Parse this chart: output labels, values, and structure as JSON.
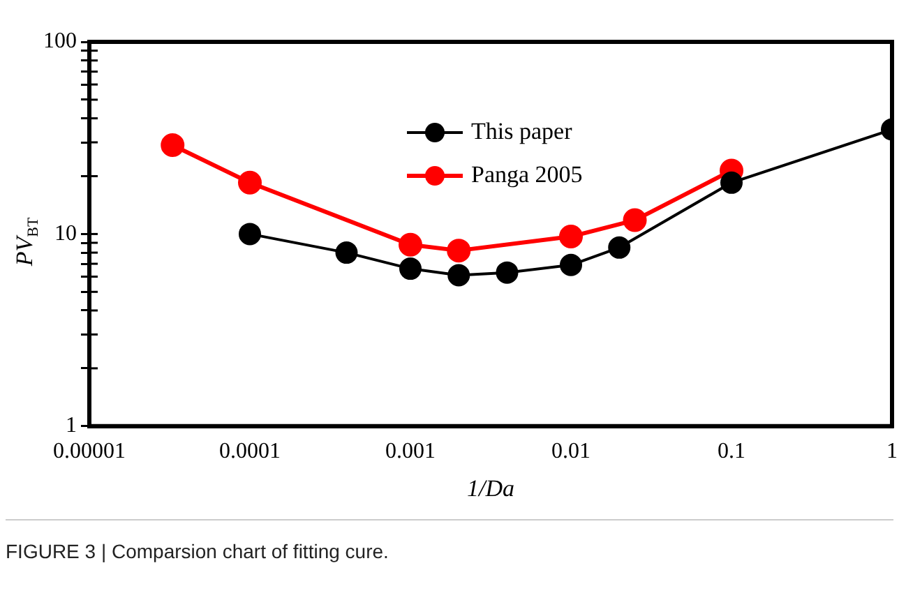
{
  "chart_data": {
    "type": "line",
    "xlabel": "1/Da",
    "ylabel": "PV$_{BT}$",
    "log": "xy",
    "xlim": [
      1e-05,
      1
    ],
    "ylim": [
      1,
      100
    ],
    "xticks": [
      {
        "value": 1e-05,
        "label": "0.00001"
      },
      {
        "value": 0.0001,
        "label": "0.0001"
      },
      {
        "value": 0.001,
        "label": "0.001"
      },
      {
        "value": 0.01,
        "label": "0.01"
      },
      {
        "value": 0.1,
        "label": "0.1"
      },
      1
    ],
    "yticks": [
      1,
      {
        "value": 2,
        "label": null
      },
      {
        "value": 3,
        "label": null
      },
      {
        "value": 4,
        "label": null
      },
      {
        "value": 5,
        "label": null
      },
      {
        "value": 6,
        "label": null
      },
      {
        "value": 7,
        "label": null
      },
      {
        "value": 8,
        "label": null
      },
      {
        "value": 9,
        "label": null
      },
      10,
      {
        "value": 20,
        "label": null
      },
      {
        "value": 30,
        "label": null
      },
      {
        "value": 40,
        "label": null
      },
      {
        "value": 50,
        "label": null
      },
      {
        "value": 60,
        "label": null
      },
      {
        "value": 70,
        "label": null
      },
      {
        "value": 80,
        "label": null
      },
      {
        "value": 90,
        "label": null
      },
      100
    ],
    "grid": false,
    "legend": "top",
    "marker": "circle",
    "line_style": "solid",
    "series": [
      {
        "name": "This paper",
        "color": "#000000",
        "x": [
          0.0001,
          0.0004,
          0.001,
          0.002,
          0.004,
          0.01,
          0.02,
          0.1,
          1
        ],
        "values": [
          10,
          8,
          6.6,
          6.1,
          6.3,
          6.9,
          8.5,
          18.5,
          35
        ]
      },
      {
        "name": "Panga 2005",
        "color": "#ff0000",
        "x": [
          3.3e-05,
          0.0001,
          0.001,
          0.002,
          0.01,
          0.025,
          0.1
        ],
        "values": [
          29,
          18.5,
          8.8,
          8.2,
          9.7,
          11.8,
          21.4
        ]
      }
    ],
    "annotations": [
      "FIGURE 3 | Comparsion chart of fitting cure."
    ]
  }
}
